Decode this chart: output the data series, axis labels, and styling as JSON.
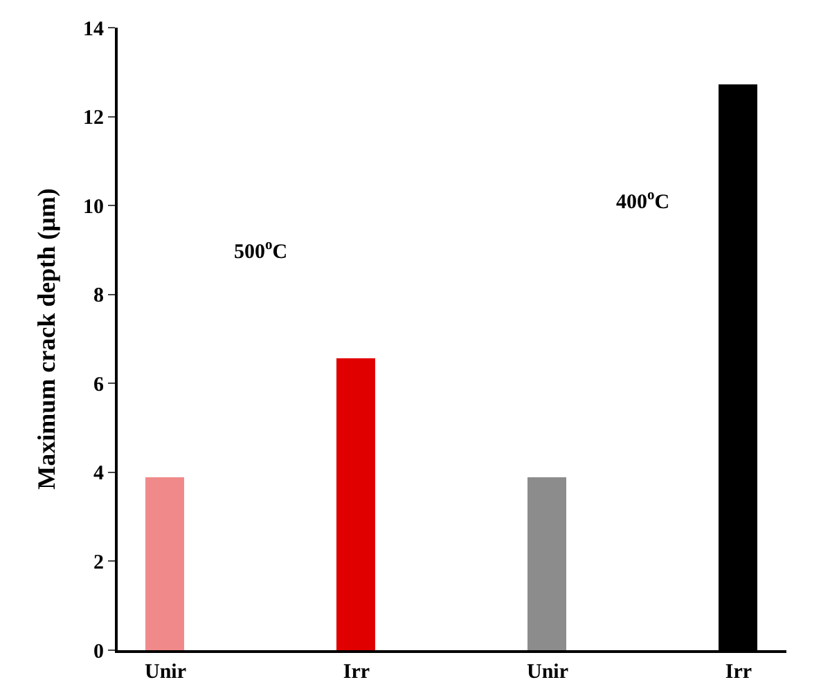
{
  "chart_data": {
    "type": "bar",
    "ylabel": "Maximum crack depth (μm)",
    "categories": [
      "Unir",
      "Irr",
      "Unir",
      "Irr"
    ],
    "values": [
      3.85,
      6.52,
      3.85,
      12.68
    ],
    "colors": [
      "#f08a8a",
      "#e00000",
      "#8c8c8c",
      "#000000"
    ],
    "ylim": [
      0,
      14
    ],
    "yticks": [
      0,
      2,
      4,
      6,
      8,
      10,
      12,
      14
    ],
    "annotations": [
      "500$^{o}$C",
      "400$^{o}$C"
    ]
  }
}
